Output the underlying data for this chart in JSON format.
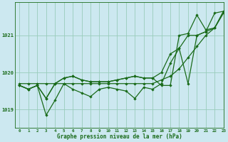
{
  "title": "Graphe pression niveau de la mer (hPa)",
  "background_color": "#cce8f0",
  "grid_color": "#99ccbb",
  "line_color": "#1a6b1a",
  "xlim": [
    -0.5,
    23
  ],
  "ylim": [
    1018.5,
    1021.9
  ],
  "yticks": [
    1019,
    1020,
    1021
  ],
  "xticks": [
    0,
    1,
    2,
    3,
    4,
    5,
    6,
    7,
    8,
    9,
    10,
    11,
    12,
    13,
    14,
    15,
    16,
    17,
    18,
    19,
    20,
    21,
    22,
    23
  ],
  "hours": [
    0,
    1,
    2,
    3,
    4,
    5,
    6,
    7,
    8,
    9,
    10,
    11,
    12,
    13,
    14,
    15,
    16,
    17,
    18,
    19,
    20,
    21,
    22,
    23
  ],
  "series_flat": [
    1019.7,
    1019.7,
    1019.7,
    1019.7,
    1019.7,
    1019.7,
    1019.7,
    1019.7,
    1019.7,
    1019.7,
    1019.7,
    1019.7,
    1019.7,
    1019.7,
    1019.7,
    1019.7,
    1019.8,
    1019.9,
    1020.1,
    1020.4,
    1020.7,
    1021.0,
    1021.2,
    1021.6
  ],
  "series_zigzag": [
    1019.65,
    1019.55,
    1019.65,
    1018.85,
    1019.25,
    1019.7,
    1019.55,
    1019.45,
    1019.35,
    1019.55,
    1019.6,
    1019.55,
    1019.5,
    1019.3,
    1019.6,
    1019.55,
    1019.7,
    1020.25,
    1020.65,
    1019.7,
    1021.0,
    1021.1,
    1021.6,
    1021.65
  ],
  "series_up1": [
    1019.65,
    1019.55,
    1019.65,
    1019.3,
    1019.7,
    1019.85,
    1019.9,
    1019.8,
    1019.75,
    1019.75,
    1019.75,
    1019.8,
    1019.85,
    1019.9,
    1019.85,
    1019.85,
    1020.0,
    1020.5,
    1020.65,
    1021.0,
    1021.0,
    1021.1,
    1021.2,
    1021.65
  ],
  "series_up2": [
    1019.65,
    1019.55,
    1019.65,
    1019.3,
    1019.7,
    1019.85,
    1019.9,
    1019.8,
    1019.75,
    1019.75,
    1019.75,
    1019.8,
    1019.85,
    1019.9,
    1019.85,
    1019.85,
    1019.65,
    1019.65,
    1021.0,
    1021.05,
    1021.55,
    1021.15,
    1021.2,
    1021.65
  ]
}
